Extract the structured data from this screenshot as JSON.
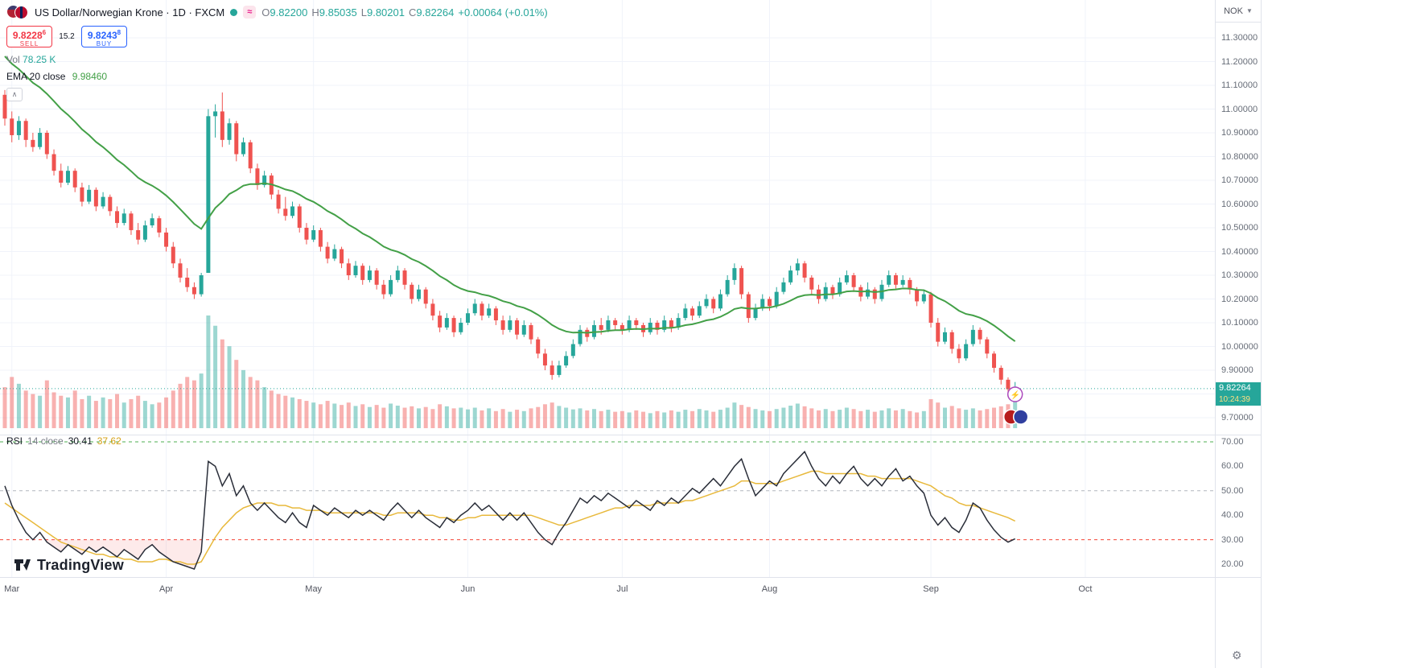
{
  "header": {
    "title": "US Dollar/Norwegian Krone · 1D · FXCM",
    "ohlc": {
      "o_label": "O",
      "o": "9.82200",
      "h_label": "H",
      "h": "9.85035",
      "l_label": "L",
      "l": "9.80201",
      "c_label": "C",
      "c": "9.82264",
      "change": "+0.00064 (+0.01%)"
    }
  },
  "trade_panel": {
    "sell_price": "9.8228",
    "sell_sup": "6",
    "sell_label": "SELL",
    "spread": "15.2",
    "buy_price": "9.8243",
    "buy_sup": "8",
    "buy_label": "BUY"
  },
  "legends": {
    "vol_label": "Vol",
    "vol_value": "78.25 K",
    "ema_label": "EMA 20 close",
    "ema_value": "9.98460",
    "rsi_label": "RSI",
    "rsi_params": "14 close",
    "rsi_value": "30.41",
    "rsi_ma_value": "37.62"
  },
  "price_scale": {
    "currency": "NOK",
    "last_price": "9.82264",
    "countdown": "10:24:39"
  },
  "time_axis": {
    "months": [
      "Mar",
      "Apr",
      "May",
      "Jun",
      "Jul",
      "Aug",
      "Sep",
      "Oct"
    ]
  },
  "watermark": {
    "brand": "TradingView"
  },
  "colors": {
    "up": "#26a69a",
    "down": "#ef5350",
    "ema": "#43a047",
    "sell": "#f23645",
    "buy": "#2962ff",
    "rsi_line": "#2a2e39",
    "rsi_ma": "#e8b93c",
    "oversold_fill": "rgba(239,83,80,0.12)",
    "grid": "#f0f3fa",
    "sep": "#e0e3eb"
  },
  "chart_data": {
    "type": "candlestick",
    "title": "US Dollar/Norwegian Krone",
    "symbol": "USDNOK",
    "timeframe": "1D",
    "exchange": "FXCM",
    "last_price": 9.82264,
    "price_axis": {
      "min": 9.7,
      "max": 11.3,
      "step": 0.1
    },
    "rsi_axis": {
      "labels": [
        70,
        60,
        50,
        40,
        30,
        20
      ]
    },
    "rsi_levels": {
      "upper": 70,
      "middle": 50,
      "lower": 30
    },
    "ema_period": 20,
    "ema_seed": 11.25,
    "month_indices": [
      1,
      23,
      44,
      66,
      88,
      109,
      132,
      154
    ],
    "candles": [
      [
        11.06,
        11.08,
        10.93,
        10.96,
        120
      ],
      [
        10.96,
        10.99,
        10.86,
        10.89,
        150
      ],
      [
        10.89,
        10.97,
        10.87,
        10.95,
        130
      ],
      [
        10.95,
        10.96,
        10.84,
        10.87,
        110
      ],
      [
        10.87,
        10.9,
        10.82,
        10.84,
        100
      ],
      [
        10.84,
        10.92,
        10.83,
        10.9,
        95
      ],
      [
        10.9,
        10.91,
        10.79,
        10.81,
        140
      ],
      [
        10.81,
        10.83,
        10.72,
        10.74,
        105
      ],
      [
        10.74,
        10.77,
        10.67,
        10.69,
        95
      ],
      [
        10.69,
        10.76,
        10.68,
        10.74,
        90
      ],
      [
        10.74,
        10.75,
        10.65,
        10.67,
        110
      ],
      [
        10.67,
        10.69,
        10.59,
        10.61,
        85
      ],
      [
        10.61,
        10.68,
        10.6,
        10.66,
        95
      ],
      [
        10.66,
        10.67,
        10.57,
        10.59,
        80
      ],
      [
        10.59,
        10.65,
        10.58,
        10.63,
        90
      ],
      [
        10.63,
        10.64,
        10.55,
        10.57,
        85
      ],
      [
        10.57,
        10.59,
        10.5,
        10.52,
        100
      ],
      [
        10.52,
        10.58,
        10.51,
        10.56,
        75
      ],
      [
        10.56,
        10.57,
        10.47,
        10.49,
        85
      ],
      [
        10.49,
        10.52,
        10.43,
        10.45,
        95
      ],
      [
        10.45,
        10.53,
        10.44,
        10.51,
        80
      ],
      [
        10.51,
        10.56,
        10.5,
        10.54,
        70
      ],
      [
        10.54,
        10.55,
        10.46,
        10.48,
        75
      ],
      [
        10.48,
        10.5,
        10.4,
        10.42,
        90
      ],
      [
        10.42,
        10.44,
        10.33,
        10.35,
        110
      ],
      [
        10.35,
        10.37,
        10.27,
        10.29,
        130
      ],
      [
        10.29,
        10.33,
        10.23,
        10.25,
        150
      ],
      [
        10.25,
        10.27,
        10.2,
        10.22,
        140
      ],
      [
        10.22,
        10.31,
        10.21,
        10.3,
        160
      ],
      [
        10.31,
        11.0,
        10.31,
        10.97,
        330
      ],
      [
        10.97,
        11.02,
        10.88,
        10.99,
        300
      ],
      [
        10.99,
        11.07,
        10.84,
        10.87,
        260
      ],
      [
        10.87,
        10.96,
        10.85,
        10.94,
        240
      ],
      [
        10.94,
        10.95,
        10.78,
        10.81,
        200
      ],
      [
        10.81,
        10.88,
        10.8,
        10.86,
        170
      ],
      [
        10.86,
        10.87,
        10.73,
        10.75,
        150
      ],
      [
        10.75,
        10.77,
        10.66,
        10.68,
        140
      ],
      [
        10.68,
        10.74,
        10.67,
        10.72,
        120
      ],
      [
        10.72,
        10.73,
        10.62,
        10.64,
        110
      ],
      [
        10.64,
        10.66,
        10.56,
        10.58,
        100
      ],
      [
        10.58,
        10.63,
        10.53,
        10.55,
        95
      ],
      [
        10.55,
        10.61,
        10.54,
        10.59,
        90
      ],
      [
        10.59,
        10.6,
        10.48,
        10.5,
        85
      ],
      [
        10.5,
        10.52,
        10.43,
        10.45,
        80
      ],
      [
        10.45,
        10.51,
        10.44,
        10.49,
        75
      ],
      [
        10.49,
        10.5,
        10.4,
        10.42,
        70
      ],
      [
        10.42,
        10.44,
        10.35,
        10.37,
        80
      ],
      [
        10.37,
        10.43,
        10.36,
        10.41,
        72
      ],
      [
        10.41,
        10.42,
        10.33,
        10.35,
        68
      ],
      [
        10.35,
        10.37,
        10.28,
        10.3,
        75
      ],
      [
        10.3,
        10.36,
        10.29,
        10.34,
        65
      ],
      [
        10.34,
        10.35,
        10.26,
        10.28,
        70
      ],
      [
        10.28,
        10.34,
        10.27,
        10.32,
        62
      ],
      [
        10.32,
        10.33,
        10.24,
        10.26,
        68
      ],
      [
        10.26,
        10.28,
        10.2,
        10.22,
        60
      ],
      [
        10.22,
        10.3,
        10.21,
        10.28,
        72
      ],
      [
        10.28,
        10.34,
        10.27,
        10.32,
        66
      ],
      [
        10.32,
        10.33,
        10.24,
        10.26,
        60
      ],
      [
        10.26,
        10.27,
        10.18,
        10.2,
        64
      ],
      [
        10.2,
        10.26,
        10.19,
        10.24,
        58
      ],
      [
        10.24,
        10.25,
        10.16,
        10.18,
        62
      ],
      [
        10.18,
        10.2,
        10.11,
        10.13,
        56
      ],
      [
        10.13,
        10.15,
        10.06,
        10.08,
        70
      ],
      [
        10.08,
        10.14,
        10.07,
        10.12,
        64
      ],
      [
        10.12,
        10.13,
        10.04,
        10.06,
        58
      ],
      [
        10.06,
        10.12,
        10.05,
        10.1,
        60
      ],
      [
        10.1,
        10.16,
        10.09,
        10.14,
        55
      ],
      [
        10.14,
        10.2,
        10.13,
        10.18,
        60
      ],
      [
        10.18,
        10.19,
        10.11,
        10.13,
        52
      ],
      [
        10.13,
        10.18,
        10.12,
        10.16,
        58
      ],
      [
        10.16,
        10.17,
        10.09,
        10.11,
        50
      ],
      [
        10.11,
        10.13,
        10.05,
        10.07,
        56
      ],
      [
        10.07,
        10.13,
        10.06,
        10.11,
        48
      ],
      [
        10.11,
        10.12,
        10.03,
        10.05,
        54
      ],
      [
        10.05,
        10.11,
        10.04,
        10.09,
        50
      ],
      [
        10.09,
        10.1,
        10.01,
        10.03,
        58
      ],
      [
        10.03,
        10.04,
        9.95,
        9.97,
        62
      ],
      [
        9.97,
        9.99,
        9.9,
        9.92,
        70
      ],
      [
        9.92,
        9.94,
        9.86,
        9.88,
        75
      ],
      [
        9.88,
        9.94,
        9.87,
        9.92,
        65
      ],
      [
        9.92,
        9.98,
        9.91,
        9.96,
        60
      ],
      [
        9.96,
        10.03,
        9.95,
        10.01,
        55
      ],
      [
        10.01,
        10.09,
        10.0,
        10.07,
        58
      ],
      [
        10.07,
        10.08,
        10.02,
        10.04,
        52
      ],
      [
        10.04,
        10.11,
        10.03,
        10.09,
        56
      ],
      [
        10.09,
        10.12,
        10.05,
        10.07,
        50
      ],
      [
        10.07,
        10.13,
        10.06,
        10.11,
        54
      ],
      [
        10.11,
        10.12,
        10.07,
        10.09,
        48
      ],
      [
        10.09,
        10.1,
        10.05,
        10.07,
        50
      ],
      [
        10.07,
        10.13,
        10.06,
        10.11,
        46
      ],
      [
        10.11,
        10.12,
        10.07,
        10.09,
        52
      ],
      [
        10.09,
        10.1,
        10.04,
        10.06,
        48
      ],
      [
        10.06,
        10.12,
        10.05,
        10.1,
        44
      ],
      [
        10.1,
        10.11,
        10.05,
        10.07,
        50
      ],
      [
        10.07,
        10.13,
        10.06,
        10.11,
        46
      ],
      [
        10.11,
        10.12,
        10.06,
        10.08,
        52
      ],
      [
        10.08,
        10.14,
        10.07,
        10.12,
        48
      ],
      [
        10.12,
        10.18,
        10.11,
        10.16,
        54
      ],
      [
        10.16,
        10.17,
        10.11,
        10.13,
        50
      ],
      [
        10.13,
        10.19,
        10.12,
        10.17,
        56
      ],
      [
        10.17,
        10.22,
        10.16,
        10.2,
        52
      ],
      [
        10.2,
        10.21,
        10.14,
        10.16,
        48
      ],
      [
        10.16,
        10.24,
        10.15,
        10.22,
        54
      ],
      [
        10.22,
        10.3,
        10.21,
        10.28,
        60
      ],
      [
        10.28,
        10.35,
        10.26,
        10.33,
        75
      ],
      [
        10.33,
        10.34,
        10.2,
        10.22,
        68
      ],
      [
        10.22,
        10.23,
        10.1,
        10.12,
        62
      ],
      [
        10.12,
        10.18,
        10.11,
        10.16,
        56
      ],
      [
        10.16,
        10.22,
        10.15,
        10.2,
        52
      ],
      [
        10.2,
        10.21,
        10.15,
        10.17,
        50
      ],
      [
        10.17,
        10.25,
        10.16,
        10.23,
        56
      ],
      [
        10.23,
        10.29,
        10.22,
        10.27,
        60
      ],
      [
        10.27,
        10.34,
        10.26,
        10.32,
        66
      ],
      [
        10.32,
        10.37,
        10.3,
        10.35,
        72
      ],
      [
        10.35,
        10.36,
        10.27,
        10.29,
        64
      ],
      [
        10.29,
        10.3,
        10.22,
        10.24,
        58
      ],
      [
        10.24,
        10.26,
        10.18,
        10.2,
        52
      ],
      [
        10.2,
        10.27,
        10.19,
        10.25,
        56
      ],
      [
        10.25,
        10.26,
        10.2,
        10.22,
        50
      ],
      [
        10.22,
        10.29,
        10.21,
        10.27,
        54
      ],
      [
        10.27,
        10.32,
        10.26,
        10.3,
        60
      ],
      [
        10.3,
        10.31,
        10.23,
        10.25,
        56
      ],
      [
        10.25,
        10.26,
        10.19,
        10.21,
        50
      ],
      [
        10.21,
        10.27,
        10.2,
        10.24,
        54
      ],
      [
        10.24,
        10.25,
        10.18,
        10.2,
        48
      ],
      [
        10.2,
        10.28,
        10.19,
        10.26,
        52
      ],
      [
        10.26,
        10.32,
        10.25,
        10.3,
        58
      ],
      [
        10.3,
        10.31,
        10.24,
        10.26,
        52
      ],
      [
        10.26,
        10.3,
        10.25,
        10.28,
        56
      ],
      [
        10.28,
        10.29,
        10.22,
        10.24,
        50
      ],
      [
        10.24,
        10.25,
        10.17,
        10.19,
        46
      ],
      [
        10.19,
        10.24,
        10.18,
        10.22,
        50
      ],
      [
        10.22,
        10.23,
        10.08,
        10.1,
        85
      ],
      [
        10.1,
        10.12,
        10.0,
        10.02,
        75
      ],
      [
        10.02,
        10.08,
        10.01,
        10.06,
        60
      ],
      [
        10.06,
        10.07,
        9.97,
        9.99,
        65
      ],
      [
        9.99,
        10.01,
        9.93,
        9.95,
        58
      ],
      [
        9.95,
        10.03,
        9.94,
        10.01,
        54
      ],
      [
        10.01,
        10.09,
        10.0,
        10.07,
        58
      ],
      [
        10.07,
        10.08,
        10.01,
        10.03,
        52
      ],
      [
        10.03,
        10.04,
        9.95,
        9.97,
        56
      ],
      [
        9.97,
        9.98,
        9.89,
        9.91,
        60
      ],
      [
        9.91,
        9.92,
        9.84,
        9.86,
        64
      ],
      [
        9.86,
        9.87,
        9.8,
        9.82,
        70
      ],
      [
        9.822,
        9.85035,
        9.80201,
        9.82264,
        78
      ]
    ],
    "rsi": [
      52,
      44,
      38,
      33,
      30,
      33,
      29,
      27,
      25,
      28,
      26,
      24,
      27,
      25,
      27,
      25,
      23,
      26,
      24,
      22,
      26,
      28,
      25,
      23,
      21,
      20,
      19,
      18,
      25,
      62,
      60,
      52,
      57,
      48,
      52,
      45,
      42,
      45,
      42,
      39,
      37,
      41,
      37,
      35,
      44,
      42,
      40,
      43,
      41,
      39,
      42,
      40,
      42,
      40,
      38,
      42,
      45,
      42,
      39,
      42,
      39,
      37,
      35,
      39,
      37,
      40,
      42,
      45,
      42,
      44,
      41,
      38,
      41,
      38,
      41,
      37,
      33,
      30,
      28,
      33,
      37,
      42,
      47,
      45,
      48,
      46,
      49,
      47,
      45,
      43,
      46,
      44,
      42,
      46,
      44,
      47,
      45,
      48,
      51,
      49,
      52,
      55,
      52,
      56,
      60,
      63,
      55,
      48,
      51,
      54,
      52,
      57,
      60,
      63,
      66,
      60,
      55,
      52,
      56,
      53,
      57,
      60,
      55,
      52,
      55,
      52,
      56,
      59,
      54,
      56,
      52,
      49,
      40,
      36,
      39,
      35,
      33,
      38,
      45,
      43,
      38,
      34,
      31,
      29,
      30.41
    ],
    "rsi_ma": [
      45,
      43,
      41,
      39,
      37,
      35,
      33,
      31,
      29,
      28,
      27,
      26,
      25,
      24,
      24,
      23,
      23,
      22,
      22,
      21,
      21,
      21,
      22,
      22,
      21,
      21,
      20,
      20,
      21,
      26,
      31,
      35,
      38,
      41,
      43,
      44,
      45,
      45,
      45,
      44,
      44,
      43,
      43,
      42,
      42,
      42,
      41,
      41,
      41,
      41,
      41,
      41,
      41,
      41,
      40,
      40,
      41,
      41,
      41,
      41,
      40,
      40,
      39,
      39,
      38,
      38,
      39,
      39,
      40,
      40,
      40,
      40,
      40,
      40,
      40,
      40,
      39,
      38,
      37,
      36,
      36,
      37,
      38,
      39,
      40,
      41,
      42,
      43,
      43,
      44,
      44,
      44,
      44,
      45,
      45,
      45,
      45,
      46,
      46,
      47,
      48,
      49,
      50,
      51,
      52,
      54,
      54,
      53,
      53,
      53,
      53,
      54,
      55,
      56,
      57,
      58,
      58,
      57,
      57,
      57,
      57,
      57,
      57,
      56,
      56,
      55,
      55,
      55,
      55,
      55,
      54,
      53,
      52,
      50,
      48,
      47,
      45,
      44,
      44,
      43,
      42,
      41,
      40,
      39,
      37.62
    ]
  }
}
